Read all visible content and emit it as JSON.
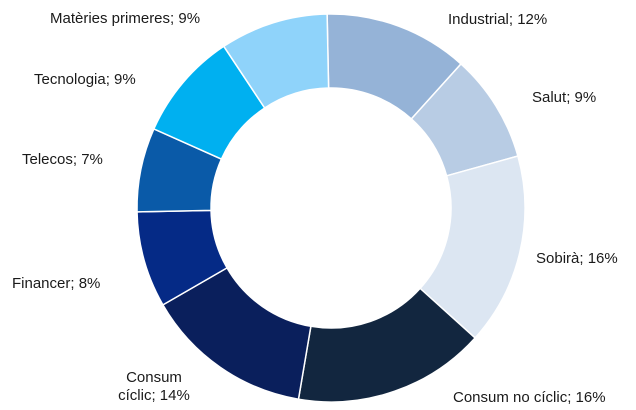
{
  "chart_data": {
    "type": "pie",
    "variant": "donut",
    "legend": "none",
    "slices": [
      {
        "label": "Industrial; 12%",
        "value": 12,
        "color": "#95b3d7"
      },
      {
        "label": "Salut; 9%",
        "value": 9,
        "color": "#b8cce4"
      },
      {
        "label": "Sobirà; 16%",
        "value": 16,
        "color": "#dce6f2"
      },
      {
        "label": "Consum no cíclic; 16%",
        "value": 16,
        "color": "#12263f"
      },
      {
        "label_lines": [
          "Consum",
          "cíclic; 14%"
        ],
        "value": 14,
        "color": "#0a1f5c"
      },
      {
        "label": "Financer; 8%",
        "value": 8,
        "color": "#052a86"
      },
      {
        "label": "Telecos; 7%",
        "value": 7,
        "color": "#0a5aa8"
      },
      {
        "label": "Tecnologia; 9%",
        "value": 9,
        "color": "#00b0f0"
      },
      {
        "label": "Matèries primeres; 9%",
        "value": 9,
        "color": "#8fd3fa"
      }
    ]
  }
}
